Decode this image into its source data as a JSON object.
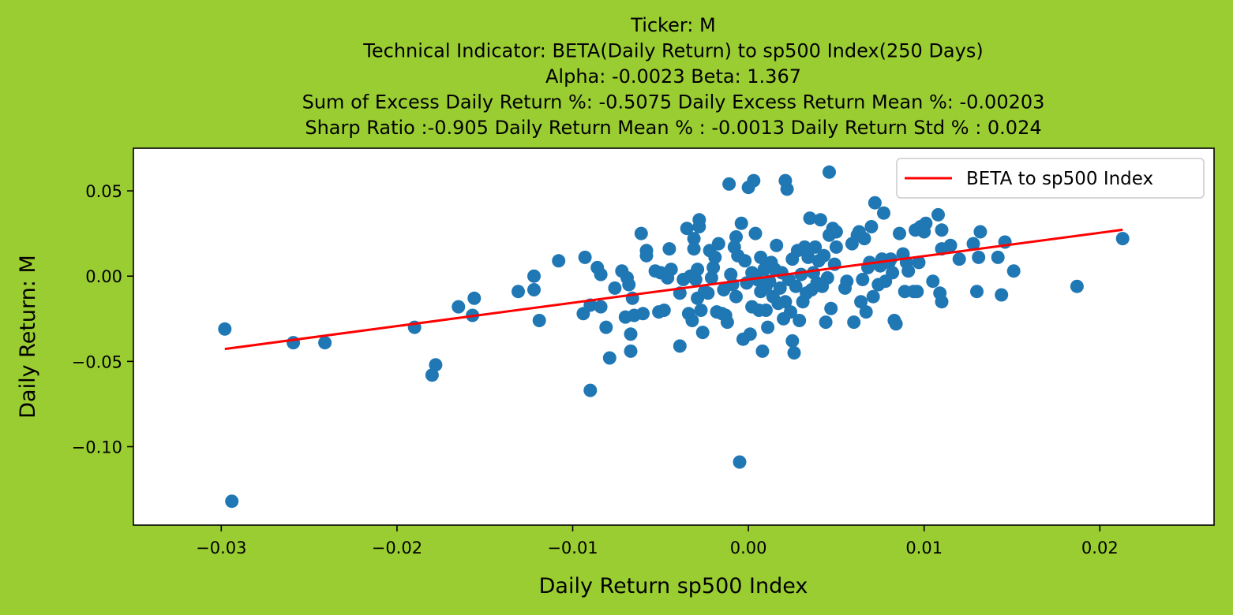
{
  "chart_data": {
    "type": "scatter",
    "title_lines": [
      "Ticker: M",
      "Technical Indicator: BETA(Daily Return) to sp500 Index(250 Days)",
      "Alpha: -0.0023   Beta: 1.367",
      "Sum of Excess Daily Return %: -0.5075   Daily Excess Return Mean %: -0.00203",
      "Sharp Ratio :-0.905     Daily Return Mean % : -0.0013     Daily Return Std % : 0.024"
    ],
    "xlabel": "Daily Return sp500 Index",
    "ylabel": "Daily Return: M",
    "xlim": [
      -0.035,
      0.0265
    ],
    "ylim": [
      -0.146,
      0.075
    ],
    "xticks": [
      -0.03,
      -0.02,
      -0.01,
      0.0,
      0.01,
      0.02
    ],
    "xtick_labels": [
      "−0.03",
      "−0.02",
      "−0.01",
      "0.00",
      "0.01",
      "0.02"
    ],
    "yticks": [
      0.05,
      0.0,
      -0.05,
      -0.1
    ],
    "ytick_labels": [
      "0.05",
      "0.00",
      "−0.05",
      "−0.10"
    ],
    "grid": false,
    "legend_position": "top-right",
    "colors": {
      "background": "#9acd32",
      "points": "#1f77b4",
      "line": "#ff0000",
      "plot_bg": "#ffffff"
    },
    "series": [
      {
        "kind": "line",
        "name": "BETA to sp500 Index",
        "x": [
          -0.0298,
          0.0213
        ],
        "y": [
          -0.0427,
          0.0272
        ]
      },
      {
        "kind": "scatter",
        "points": [
          [
            -0.0298,
            -0.031
          ],
          [
            -0.0294,
            -0.132
          ],
          [
            -0.0259,
            -0.039
          ],
          [
            -0.0241,
            -0.039
          ],
          [
            -0.019,
            -0.03
          ],
          [
            -0.0178,
            -0.052
          ],
          [
            -0.018,
            -0.058
          ],
          [
            -0.0165,
            -0.018
          ],
          [
            -0.0156,
            -0.013
          ],
          [
            -0.0157,
            -0.023
          ],
          [
            -0.0131,
            -0.009
          ],
          [
            -0.0122,
            -0.008
          ],
          [
            -0.0122,
            0.0
          ],
          [
            -0.0119,
            -0.026
          ],
          [
            -0.0108,
            0.009
          ],
          [
            -0.0094,
            -0.022
          ],
          [
            -0.0093,
            0.011
          ],
          [
            -0.009,
            -0.017
          ],
          [
            -0.009,
            -0.067
          ],
          [
            -0.0086,
            0.005
          ],
          [
            -0.0084,
            -0.018
          ],
          [
            -0.0084,
            0.001
          ],
          [
            -0.0081,
            -0.03
          ],
          [
            -0.0079,
            -0.048
          ],
          [
            -0.0076,
            -0.007
          ],
          [
            -0.0072,
            0.003
          ],
          [
            -0.007,
            -0.024
          ],
          [
            -0.0069,
            -0.001
          ],
          [
            -0.0068,
            -0.005
          ],
          [
            -0.0067,
            -0.034
          ],
          [
            -0.0067,
            -0.044
          ],
          [
            -0.0066,
            -0.013
          ],
          [
            -0.0065,
            -0.023
          ],
          [
            -0.0061,
            0.025
          ],
          [
            -0.006,
            -0.022
          ],
          [
            -0.0058,
            0.015
          ],
          [
            -0.0058,
            0.012
          ],
          [
            -0.0053,
            0.003
          ],
          [
            -0.0051,
            -0.021
          ],
          [
            -0.005,
            0.002
          ],
          [
            -0.0048,
            -0.02
          ],
          [
            -0.0046,
            -0.001
          ],
          [
            -0.0045,
            0.016
          ],
          [
            -0.0044,
            0.004
          ],
          [
            -0.0039,
            -0.01
          ],
          [
            -0.0039,
            -0.041
          ],
          [
            -0.0037,
            -0.002
          ],
          [
            -0.0035,
            0.028
          ],
          [
            -0.0034,
            -0.022
          ],
          [
            -0.0033,
            0.0
          ],
          [
            -0.0032,
            -0.026
          ],
          [
            -0.0031,
            0.022
          ],
          [
            -0.0031,
            0.016
          ],
          [
            -0.003,
            -0.002
          ],
          [
            -0.0029,
            -0.013
          ],
          [
            -0.0029,
            0.004
          ],
          [
            -0.0028,
            0.033
          ],
          [
            -0.0028,
            0.029
          ],
          [
            -0.0027,
            -0.02
          ],
          [
            -0.0026,
            -0.033
          ],
          [
            -0.0025,
            -0.009
          ],
          [
            -0.0023,
            -0.01
          ],
          [
            -0.0022,
            0.015
          ],
          [
            -0.0021,
            -0.001
          ],
          [
            -0.002,
            0.005
          ],
          [
            -0.0019,
            0.011
          ],
          [
            -0.0018,
            -0.021
          ],
          [
            -0.0017,
            0.019
          ],
          [
            -0.0015,
            -0.022
          ],
          [
            -0.0014,
            -0.008
          ],
          [
            -0.0013,
            -0.023
          ],
          [
            -0.0012,
            -0.027
          ],
          [
            -0.0011,
            0.054
          ],
          [
            -0.001,
            0.001
          ],
          [
            -0.0009,
            -0.005
          ],
          [
            -0.0008,
            0.017
          ],
          [
            -0.0007,
            -0.012
          ],
          [
            -0.0007,
            0.023
          ],
          [
            -0.0006,
            0.012
          ],
          [
            -0.0005,
            -0.109
          ],
          [
            -0.0004,
            0.031
          ],
          [
            -0.0003,
            -0.037
          ],
          [
            -0.0002,
            0.009
          ],
          [
            -0.0001,
            -0.004
          ],
          [
            0.0,
            0.052
          ],
          [
            0.0001,
            -0.034
          ],
          [
            0.0002,
            -0.018
          ],
          [
            0.0002,
            0.002
          ],
          [
            0.0003,
            0.056
          ],
          [
            0.0004,
            0.025
          ],
          [
            0.0005,
            -0.002
          ],
          [
            0.0006,
            -0.02
          ],
          [
            0.0007,
            0.011
          ],
          [
            0.0007,
            -0.009
          ],
          [
            0.0008,
            -0.044
          ],
          [
            0.0009,
            0.004
          ],
          [
            0.001,
            -0.006
          ],
          [
            0.001,
            -0.02
          ],
          [
            0.0011,
            -0.03
          ],
          [
            0.0012,
            -0.003
          ],
          [
            0.0013,
            0.008
          ],
          [
            0.0014,
            -0.012
          ],
          [
            0.0015,
            0.004
          ],
          [
            0.0016,
            0.018
          ],
          [
            0.0017,
            -0.016
          ],
          [
            0.0018,
            -0.007
          ],
          [
            0.0019,
            0.002
          ],
          [
            0.002,
            -0.025
          ],
          [
            0.0021,
            -0.015
          ],
          [
            0.0021,
            0.056
          ],
          [
            0.0022,
            0.051
          ],
          [
            0.0023,
            -0.002
          ],
          [
            0.0024,
            -0.021
          ],
          [
            0.0025,
            0.01
          ],
          [
            0.0025,
            -0.038
          ],
          [
            0.0026,
            -0.045
          ],
          [
            0.0027,
            -0.006
          ],
          [
            0.0028,
            0.015
          ],
          [
            0.0029,
            -0.026
          ],
          [
            0.003,
            0.001
          ],
          [
            0.0031,
            -0.015
          ],
          [
            0.0032,
            0.017
          ],
          [
            0.0033,
            -0.01
          ],
          [
            0.0034,
            0.011
          ],
          [
            0.0035,
            0.034
          ],
          [
            0.0036,
            -0.008
          ],
          [
            0.0037,
            0.002
          ],
          [
            0.0038,
            0.017
          ],
          [
            0.0039,
            -0.004
          ],
          [
            0.004,
            0.009
          ],
          [
            0.0041,
            0.033
          ],
          [
            0.0042,
            -0.006
          ],
          [
            0.0043,
            0.012
          ],
          [
            0.0044,
            -0.027
          ],
          [
            0.0045,
            -0.001
          ],
          [
            0.0046,
            0.024
          ],
          [
            0.0046,
            0.061
          ],
          [
            0.0047,
            -0.019
          ],
          [
            0.0048,
            0.028
          ],
          [
            0.0049,
            0.007
          ],
          [
            0.005,
            0.017
          ],
          [
            0.005,
            0.026
          ],
          [
            0.0055,
            -0.007
          ],
          [
            0.0056,
            -0.003
          ],
          [
            0.0059,
            0.019
          ],
          [
            0.006,
            -0.027
          ],
          [
            0.0062,
            0.024
          ],
          [
            0.0063,
            0.026
          ],
          [
            0.0064,
            -0.015
          ],
          [
            0.0065,
            -0.002
          ],
          [
            0.0066,
            0.022
          ],
          [
            0.0067,
            -0.021
          ],
          [
            0.0068,
            0.005
          ],
          [
            0.0069,
            0.008
          ],
          [
            0.007,
            0.029
          ],
          [
            0.0071,
            -0.012
          ],
          [
            0.0072,
            0.043
          ],
          [
            0.0074,
            -0.005
          ],
          [
            0.0075,
            0.006
          ],
          [
            0.0076,
            0.01
          ],
          [
            0.0077,
            0.037
          ],
          [
            0.0078,
            -0.003
          ],
          [
            0.008,
            0.008
          ],
          [
            0.0081,
            0.01
          ],
          [
            0.0082,
            0.002
          ],
          [
            0.0083,
            -0.026
          ],
          [
            0.0084,
            -0.028
          ],
          [
            0.0086,
            0.025
          ],
          [
            0.0088,
            0.013
          ],
          [
            0.0089,
            -0.009
          ],
          [
            0.009,
            0.008
          ],
          [
            0.0091,
            0.003
          ],
          [
            0.0094,
            -0.009
          ],
          [
            0.0095,
            0.027
          ],
          [
            0.0096,
            -0.009
          ],
          [
            0.0097,
            0.008
          ],
          [
            0.0098,
            0.029
          ],
          [
            0.01,
            0.026
          ],
          [
            0.0101,
            0.031
          ],
          [
            0.0105,
            -0.003
          ],
          [
            0.0108,
            0.036
          ],
          [
            0.0109,
            -0.01
          ],
          [
            0.011,
            0.027
          ],
          [
            0.011,
            0.016
          ],
          [
            0.011,
            -0.015
          ],
          [
            0.0115,
            0.018
          ],
          [
            0.012,
            0.01
          ],
          [
            0.0128,
            0.019
          ],
          [
            0.013,
            -0.009
          ],
          [
            0.0131,
            0.011
          ],
          [
            0.0132,
            0.026
          ],
          [
            0.0142,
            0.011
          ],
          [
            0.0144,
            -0.011
          ],
          [
            0.0146,
            0.02
          ],
          [
            0.0151,
            0.003
          ],
          [
            0.0187,
            -0.006
          ],
          [
            0.0213,
            0.022
          ]
        ]
      }
    ]
  }
}
